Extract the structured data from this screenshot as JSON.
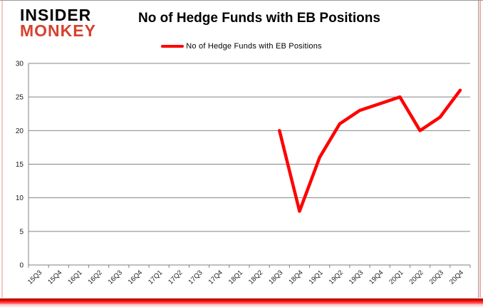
{
  "logo": {
    "line1": "INSIDER",
    "line2": "MONKEY",
    "line1_color": "#000000",
    "line2_color": "#d7402e"
  },
  "header": {
    "title": "No of Hedge Funds with EB Positions"
  },
  "legend": {
    "label": "No of Hedge Funds with EB Positions",
    "swatch_color": "#ff0000"
  },
  "chart_data": {
    "type": "line",
    "title": "No of Hedge Funds with EB Positions",
    "categories": [
      "15Q3",
      "15Q4",
      "16Q1",
      "16Q2",
      "16Q3",
      "16Q4",
      "17Q1",
      "17Q2",
      "17Q3",
      "17Q4",
      "18Q1",
      "18Q2",
      "18Q3",
      "18Q4",
      "19Q1",
      "19Q2",
      "19Q3",
      "19Q4",
      "20Q1",
      "20Q2",
      "20Q3",
      "20Q4"
    ],
    "series": [
      {
        "name": "No of Hedge Funds with EB Positions",
        "color": "#ff0000",
        "values": [
          null,
          null,
          null,
          null,
          null,
          null,
          null,
          null,
          null,
          null,
          null,
          null,
          20,
          8,
          16,
          21,
          23,
          24,
          25,
          20,
          22,
          26
        ]
      }
    ],
    "ylabel": "",
    "xlabel": "",
    "ylim": [
      0,
      30
    ],
    "yticks": [
      0,
      5,
      10,
      15,
      20,
      25,
      30
    ],
    "grid": true,
    "grid_color": "#848484",
    "axis_color": "#808080",
    "tick_label_color": "#1a1a1a",
    "legend_position": "top"
  }
}
